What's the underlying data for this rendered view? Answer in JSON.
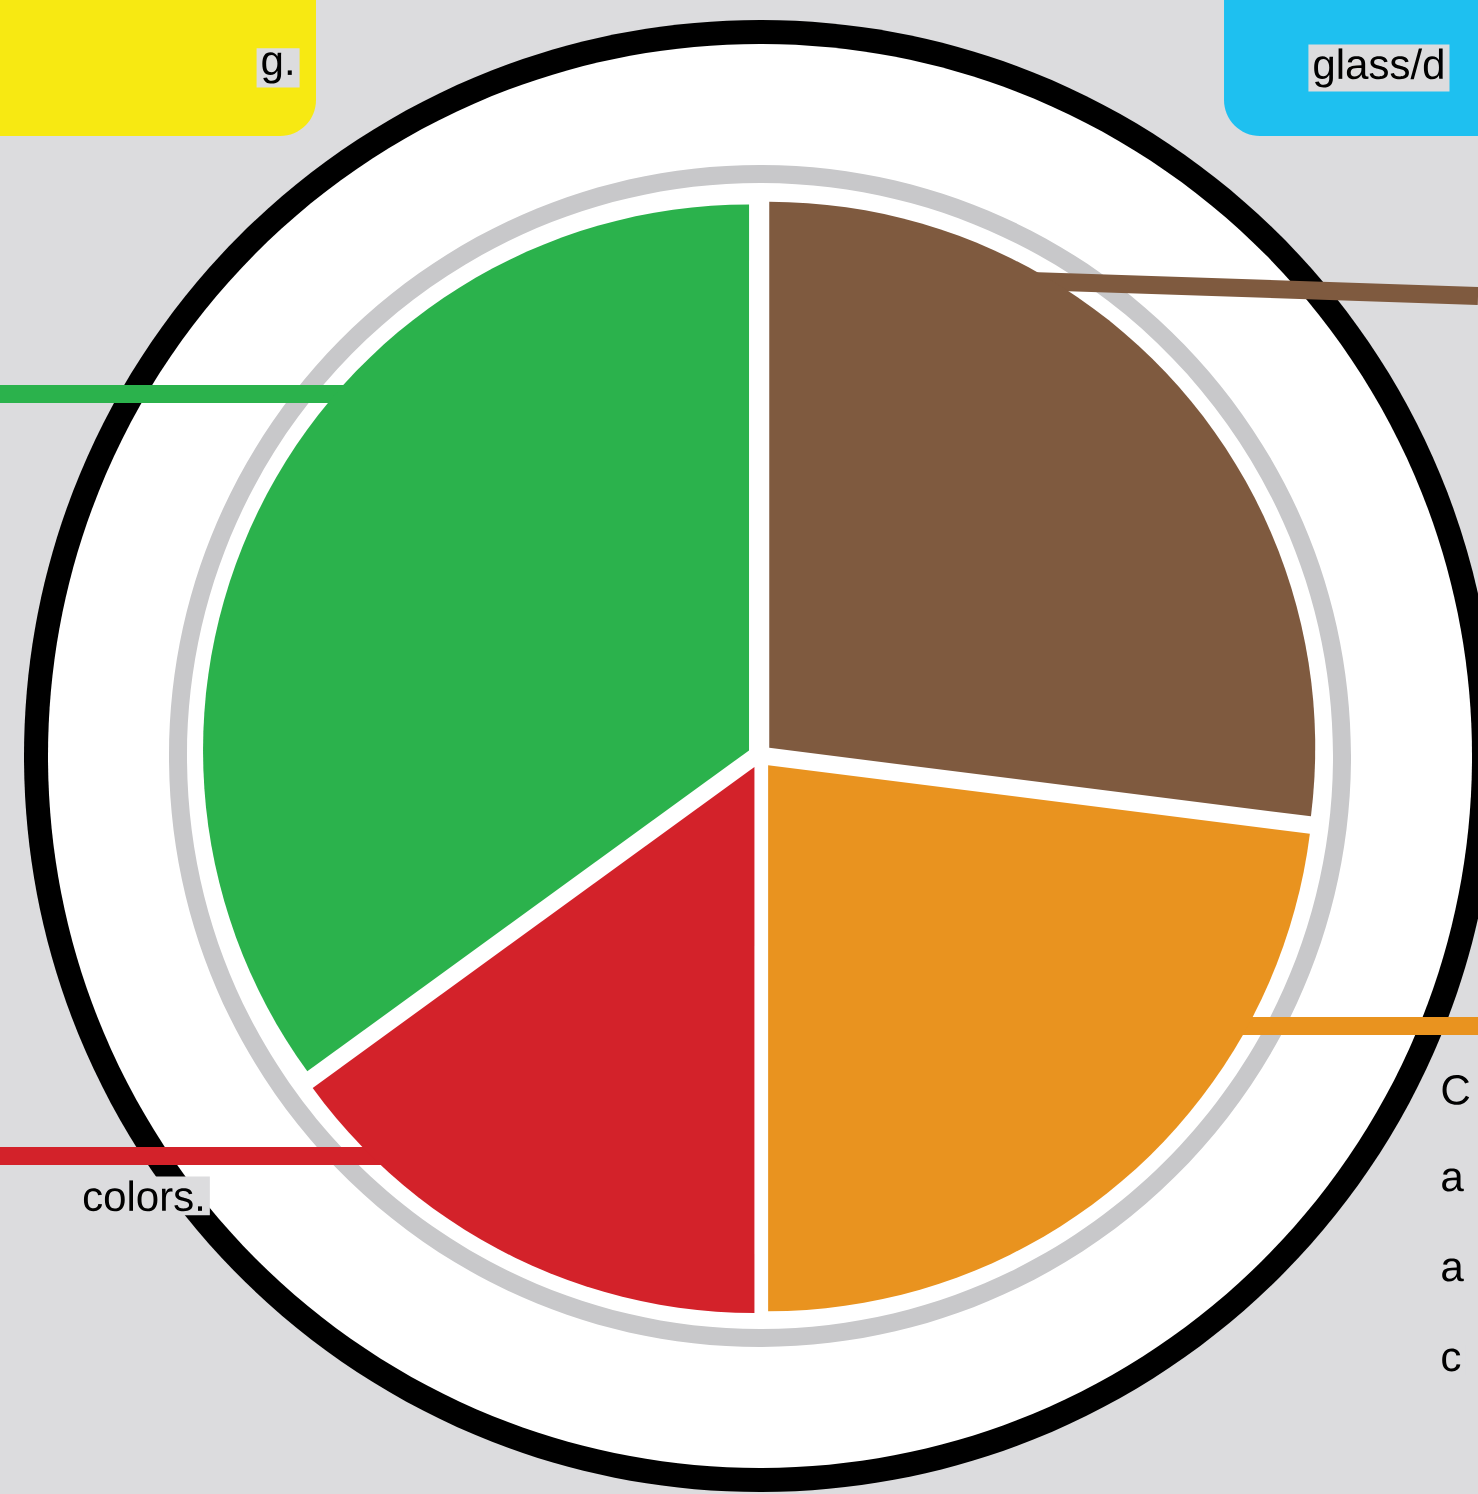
{
  "chart_data": {
    "type": "pie",
    "categories": [
      null,
      null,
      null,
      null
    ],
    "values": [
      27,
      23,
      15,
      35
    ],
    "colors": [
      "#7f5a3f",
      "#e9931f",
      "#d3222a",
      "#2bb24c"
    ],
    "annotations": [
      "g.",
      "glass/d",
      "colors.",
      "C",
      "a",
      "a",
      "c"
    ]
  }
}
